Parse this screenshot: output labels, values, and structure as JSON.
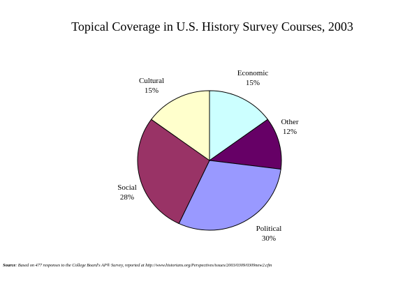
{
  "chart_data": {
    "type": "pie",
    "title": "Topical Coverage in U.S. History Survey Courses, 2003",
    "slices": [
      {
        "label": "Economic",
        "value": 15,
        "value_label": "15%",
        "color": "#ccffff"
      },
      {
        "label": "Other",
        "value": 12,
        "value_label": "12%",
        "color": "#660066"
      },
      {
        "label": "Political",
        "value": 30,
        "value_label": "30%",
        "color": "#9999ff"
      },
      {
        "label": "Social",
        "value": 28,
        "value_label": "28%",
        "color": "#993366"
      },
      {
        "label": "Cultural",
        "value": 15,
        "value_label": "15%",
        "color": "#ffffcc"
      }
    ],
    "start_angle_deg": 0,
    "direction": "clockwise",
    "edge_color": "#000000"
  },
  "source": {
    "label": "Source",
    "text": ": Based on 477 responses to the College Board's AP® Survey, reported at http://www.historians.org/Perspectives/issues/2003/0309/0309new2.cfm"
  }
}
